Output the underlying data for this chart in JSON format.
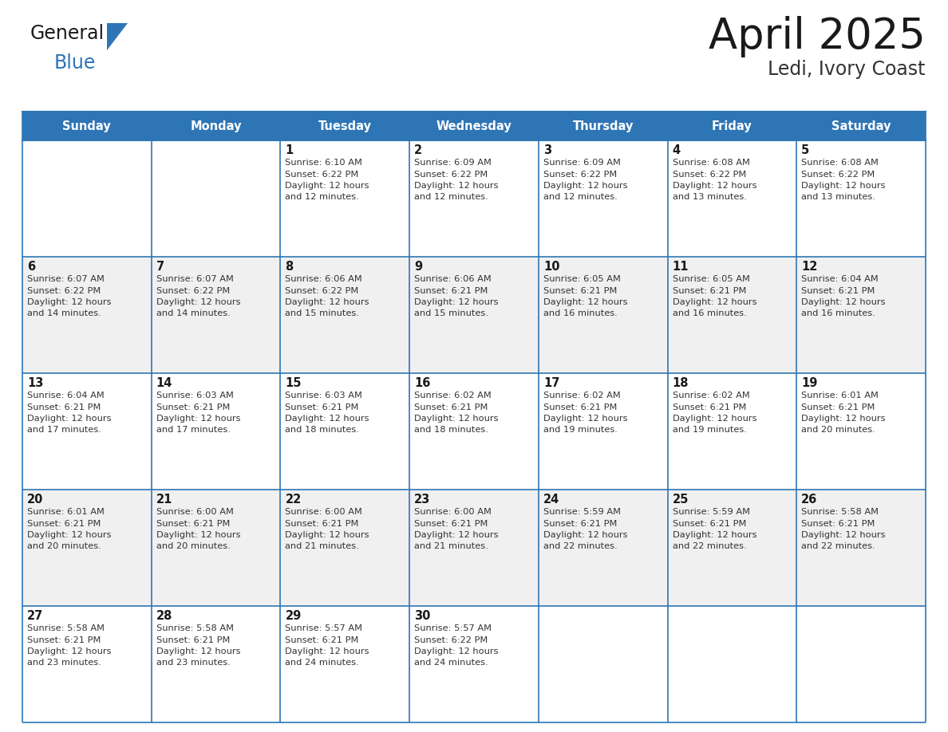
{
  "title": "April 2025",
  "subtitle": "Ledi, Ivory Coast",
  "header_bg_color": "#2E75B6",
  "header_text_color": "#FFFFFF",
  "cell_bg_white": "#FFFFFF",
  "cell_bg_gray": "#F0F0F0",
  "grid_color": "#2E75B6",
  "title_color": "#1a1a1a",
  "subtitle_color": "#333333",
  "day_num_color": "#1a1a1a",
  "day_text_color": "#333333",
  "days_of_week": [
    "Sunday",
    "Monday",
    "Tuesday",
    "Wednesday",
    "Thursday",
    "Friday",
    "Saturday"
  ],
  "logo_general_color": "#1a1a1a",
  "logo_blue_color": "#2E75B6",
  "calendar": [
    [
      {
        "day": "",
        "sunrise": "",
        "sunset": "",
        "daylight_min": ""
      },
      {
        "day": "",
        "sunrise": "",
        "sunset": "",
        "daylight_min": ""
      },
      {
        "day": "1",
        "sunrise": "6:10 AM",
        "sunset": "6:22 PM",
        "daylight_min": "and 12 minutes."
      },
      {
        "day": "2",
        "sunrise": "6:09 AM",
        "sunset": "6:22 PM",
        "daylight_min": "and 12 minutes."
      },
      {
        "day": "3",
        "sunrise": "6:09 AM",
        "sunset": "6:22 PM",
        "daylight_min": "and 12 minutes."
      },
      {
        "day": "4",
        "sunrise": "6:08 AM",
        "sunset": "6:22 PM",
        "daylight_min": "and 13 minutes."
      },
      {
        "day": "5",
        "sunrise": "6:08 AM",
        "sunset": "6:22 PM",
        "daylight_min": "and 13 minutes."
      }
    ],
    [
      {
        "day": "6",
        "sunrise": "6:07 AM",
        "sunset": "6:22 PM",
        "daylight_min": "and 14 minutes."
      },
      {
        "day": "7",
        "sunrise": "6:07 AM",
        "sunset": "6:22 PM",
        "daylight_min": "and 14 minutes."
      },
      {
        "day": "8",
        "sunrise": "6:06 AM",
        "sunset": "6:22 PM",
        "daylight_min": "and 15 minutes."
      },
      {
        "day": "9",
        "sunrise": "6:06 AM",
        "sunset": "6:21 PM",
        "daylight_min": "and 15 minutes."
      },
      {
        "day": "10",
        "sunrise": "6:05 AM",
        "sunset": "6:21 PM",
        "daylight_min": "and 16 minutes."
      },
      {
        "day": "11",
        "sunrise": "6:05 AM",
        "sunset": "6:21 PM",
        "daylight_min": "and 16 minutes."
      },
      {
        "day": "12",
        "sunrise": "6:04 AM",
        "sunset": "6:21 PM",
        "daylight_min": "and 16 minutes."
      }
    ],
    [
      {
        "day": "13",
        "sunrise": "6:04 AM",
        "sunset": "6:21 PM",
        "daylight_min": "and 17 minutes."
      },
      {
        "day": "14",
        "sunrise": "6:03 AM",
        "sunset": "6:21 PM",
        "daylight_min": "and 17 minutes."
      },
      {
        "day": "15",
        "sunrise": "6:03 AM",
        "sunset": "6:21 PM",
        "daylight_min": "and 18 minutes."
      },
      {
        "day": "16",
        "sunrise": "6:02 AM",
        "sunset": "6:21 PM",
        "daylight_min": "and 18 minutes."
      },
      {
        "day": "17",
        "sunrise": "6:02 AM",
        "sunset": "6:21 PM",
        "daylight_min": "and 19 minutes."
      },
      {
        "day": "18",
        "sunrise": "6:02 AM",
        "sunset": "6:21 PM",
        "daylight_min": "and 19 minutes."
      },
      {
        "day": "19",
        "sunrise": "6:01 AM",
        "sunset": "6:21 PM",
        "daylight_min": "and 20 minutes."
      }
    ],
    [
      {
        "day": "20",
        "sunrise": "6:01 AM",
        "sunset": "6:21 PM",
        "daylight_min": "and 20 minutes."
      },
      {
        "day": "21",
        "sunrise": "6:00 AM",
        "sunset": "6:21 PM",
        "daylight_min": "and 20 minutes."
      },
      {
        "day": "22",
        "sunrise": "6:00 AM",
        "sunset": "6:21 PM",
        "daylight_min": "and 21 minutes."
      },
      {
        "day": "23",
        "sunrise": "6:00 AM",
        "sunset": "6:21 PM",
        "daylight_min": "and 21 minutes."
      },
      {
        "day": "24",
        "sunrise": "5:59 AM",
        "sunset": "6:21 PM",
        "daylight_min": "and 22 minutes."
      },
      {
        "day": "25",
        "sunrise": "5:59 AM",
        "sunset": "6:21 PM",
        "daylight_min": "and 22 minutes."
      },
      {
        "day": "26",
        "sunrise": "5:58 AM",
        "sunset": "6:21 PM",
        "daylight_min": "and 22 minutes."
      }
    ],
    [
      {
        "day": "27",
        "sunrise": "5:58 AM",
        "sunset": "6:21 PM",
        "daylight_min": "and 23 minutes."
      },
      {
        "day": "28",
        "sunrise": "5:58 AM",
        "sunset": "6:21 PM",
        "daylight_min": "and 23 minutes."
      },
      {
        "day": "29",
        "sunrise": "5:57 AM",
        "sunset": "6:21 PM",
        "daylight_min": "and 24 minutes."
      },
      {
        "day": "30",
        "sunrise": "5:57 AM",
        "sunset": "6:22 PM",
        "daylight_min": "and 24 minutes."
      },
      {
        "day": "",
        "sunrise": "",
        "sunset": "",
        "daylight_min": ""
      },
      {
        "day": "",
        "sunrise": "",
        "sunset": "",
        "daylight_min": ""
      },
      {
        "day": "",
        "sunrise": "",
        "sunset": "",
        "daylight_min": ""
      }
    ]
  ]
}
